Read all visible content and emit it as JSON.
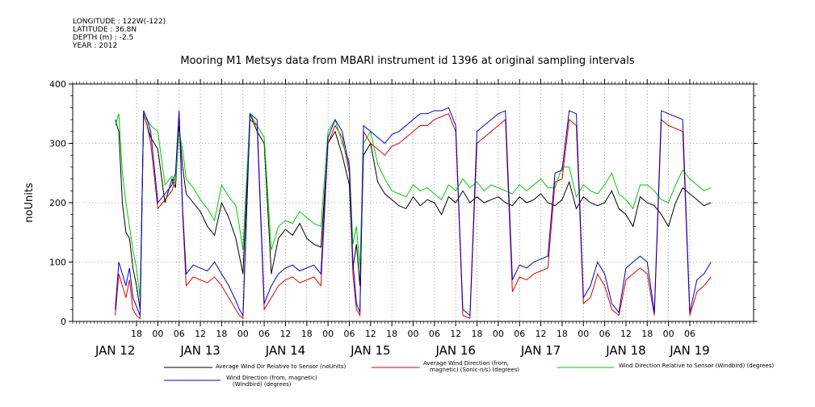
{
  "metadata": {
    "longitude": "LONGITUDE : 122W(-122)",
    "latitude": "LATITUDE : 36.8N",
    "depth": "DEPTH (m) : -2.5",
    "year": "YEAR : 2012"
  },
  "chart_data": {
    "type": "line",
    "title": "Mooring M1 Metsys data from MBARI instrument id 1396 at original sampling intervals",
    "ylabel": "noUnits",
    "xlabel": "",
    "ylim": [
      0,
      400
    ],
    "xlim_hours": [
      0,
      192
    ],
    "x_note": "hours since Jan 12 00:00 2012",
    "y_ticks": [
      0,
      100,
      200,
      300,
      400
    ],
    "x_hour_ticks": [
      {
        "h": 18,
        "label": "18"
      },
      {
        "h": 24,
        "label": "00"
      },
      {
        "h": 30,
        "label": "06"
      },
      {
        "h": 36,
        "label": "12"
      },
      {
        "h": 42,
        "label": "18"
      },
      {
        "h": 48,
        "label": "00"
      },
      {
        "h": 54,
        "label": "06"
      },
      {
        "h": 60,
        "label": "12"
      },
      {
        "h": 66,
        "label": "18"
      },
      {
        "h": 72,
        "label": "00"
      },
      {
        "h": 78,
        "label": "06"
      },
      {
        "h": 84,
        "label": "12"
      },
      {
        "h": 90,
        "label": "18"
      },
      {
        "h": 96,
        "label": "00"
      },
      {
        "h": 102,
        "label": "06"
      },
      {
        "h": 108,
        "label": "12"
      },
      {
        "h": 114,
        "label": "18"
      },
      {
        "h": 120,
        "label": "00"
      },
      {
        "h": 126,
        "label": "06"
      },
      {
        "h": 132,
        "label": "12"
      },
      {
        "h": 138,
        "label": "18"
      },
      {
        "h": 144,
        "label": "00"
      },
      {
        "h": 150,
        "label": "06"
      },
      {
        "h": 156,
        "label": "12"
      },
      {
        "h": 162,
        "label": "18"
      },
      {
        "h": 168,
        "label": "00"
      },
      {
        "h": 174,
        "label": "06"
      }
    ],
    "day_labels": [
      {
        "h": 12,
        "label": "JAN 12"
      },
      {
        "h": 36,
        "label": "JAN 13"
      },
      {
        "h": 60,
        "label": "JAN 14"
      },
      {
        "h": 84,
        "label": "JAN 15"
      },
      {
        "h": 108,
        "label": "JAN 16"
      },
      {
        "h": 132,
        "label": "JAN 17"
      },
      {
        "h": 156,
        "label": "JAN 18"
      },
      {
        "h": 174,
        "label": "JAN 19"
      }
    ],
    "series": [
      {
        "name": "Average Wind Dir Relative to Sensor (noUnits)",
        "color": "#000000",
        "x": [
          12,
          13,
          14,
          15,
          16,
          17,
          18,
          19,
          20,
          21,
          22,
          24,
          26,
          28,
          29,
          30,
          31,
          32,
          34,
          36,
          38,
          40,
          42,
          44,
          46,
          47,
          48,
          50,
          52,
          54,
          56,
          58,
          60,
          62,
          64,
          66,
          68,
          70,
          72,
          74,
          76,
          78,
          79,
          80,
          81,
          82,
          84,
          86,
          88,
          90,
          92,
          94,
          96,
          98,
          100,
          102,
          104,
          106,
          108,
          110,
          112,
          114,
          116,
          118,
          120,
          122,
          124,
          126,
          128,
          130,
          132,
          134,
          136,
          138,
          140,
          142,
          144,
          146,
          148,
          150,
          152,
          154,
          156,
          158,
          160,
          162,
          164,
          166,
          168,
          170,
          172,
          174,
          176,
          178,
          180
        ],
        "y": [
          340,
          320,
          200,
          150,
          140,
          90,
          60,
          20,
          350,
          330,
          310,
          290,
          200,
          240,
          225,
          330,
          260,
          215,
          200,
          185,
          160,
          145,
          200,
          175,
          140,
          110,
          80,
          350,
          320,
          300,
          80,
          140,
          155,
          145,
          165,
          140,
          130,
          125,
          300,
          320,
          280,
          230,
          90,
          130,
          60,
          280,
          300,
          235,
          215,
          205,
          195,
          190,
          210,
          195,
          205,
          200,
          180,
          210,
          200,
          220,
          200,
          210,
          200,
          205,
          210,
          200,
          195,
          210,
          200,
          205,
          215,
          200,
          195,
          205,
          235,
          190,
          210,
          200,
          195,
          200,
          220,
          190,
          180,
          160,
          210,
          200,
          195,
          180,
          160,
          200,
          225,
          215,
          205,
          195,
          200
        ]
      },
      {
        "name": "Average Wind Direction (from, magnetic) (Sonic-n/s) (degrees)",
        "color": "#dd0000",
        "x": [
          12,
          13,
          14,
          15,
          16,
          17,
          18,
          19,
          20,
          21,
          22,
          24,
          26,
          28,
          29,
          30,
          31,
          32,
          34,
          36,
          38,
          40,
          42,
          44,
          46,
          47,
          48,
          50,
          52,
          54,
          56,
          58,
          60,
          62,
          64,
          66,
          68,
          70,
          72,
          74,
          76,
          78,
          79,
          80,
          81,
          82,
          84,
          86,
          88,
          90,
          92,
          94,
          96,
          98,
          100,
          102,
          104,
          106,
          108,
          110,
          112,
          114,
          116,
          118,
          120,
          122,
          124,
          126,
          128,
          130,
          132,
          134,
          136,
          138,
          140,
          142,
          144,
          146,
          148,
          150,
          152,
          154,
          156,
          158,
          160,
          162,
          164,
          166,
          168,
          170,
          172,
          174,
          176,
          178,
          180
        ],
        "y": [
          10,
          80,
          60,
          40,
          70,
          20,
          10,
          5,
          350,
          330,
          300,
          190,
          205,
          220,
          240,
          350,
          180,
          60,
          75,
          70,
          65,
          75,
          60,
          40,
          20,
          10,
          5,
          340,
          330,
          20,
          40,
          60,
          70,
          75,
          65,
          70,
          75,
          60,
          300,
          330,
          310,
          250,
          80,
          20,
          10,
          320,
          300,
          290,
          280,
          295,
          300,
          310,
          320,
          330,
          330,
          340,
          345,
          350,
          320,
          10,
          5,
          300,
          310,
          320,
          330,
          340,
          50,
          75,
          70,
          80,
          85,
          90,
          235,
          240,
          340,
          330,
          30,
          40,
          80,
          60,
          20,
          10,
          70,
          80,
          90,
          80,
          10,
          340,
          330,
          325,
          320,
          10,
          50,
          60,
          75
        ]
      },
      {
        "name": "Wind Direction Relative to Sensor (Windbird) (degrees)",
        "color": "#00cc00",
        "x": [
          12,
          13,
          14,
          15,
          16,
          17,
          18,
          19,
          20,
          21,
          22,
          24,
          26,
          28,
          29,
          30,
          31,
          32,
          34,
          36,
          38,
          40,
          42,
          44,
          46,
          47,
          48,
          50,
          52,
          54,
          56,
          58,
          60,
          62,
          64,
          66,
          68,
          70,
          72,
          74,
          76,
          78,
          79,
          80,
          81,
          82,
          84,
          86,
          88,
          90,
          92,
          94,
          96,
          98,
          100,
          102,
          104,
          106,
          108,
          110,
          112,
          114,
          116,
          118,
          120,
          122,
          124,
          126,
          128,
          130,
          132,
          134,
          136,
          138,
          140,
          142,
          144,
          146,
          148,
          150,
          152,
          154,
          156,
          158,
          160,
          162,
          164,
          166,
          168,
          170,
          172,
          174,
          176,
          178,
          180
        ],
        "y": [
          330,
          350,
          250,
          200,
          160,
          120,
          90,
          40,
          345,
          340,
          330,
          320,
          230,
          245,
          235,
          320,
          290,
          240,
          225,
          205,
          190,
          170,
          230,
          210,
          195,
          160,
          120,
          350,
          330,
          310,
          120,
          160,
          170,
          165,
          185,
          175,
          165,
          160,
          320,
          340,
          300,
          270,
          130,
          160,
          90,
          300,
          320,
          265,
          240,
          220,
          215,
          210,
          230,
          220,
          225,
          215,
          205,
          230,
          220,
          240,
          225,
          235,
          220,
          230,
          225,
          220,
          215,
          230,
          220,
          230,
          240,
          225,
          225,
          260,
          260,
          210,
          230,
          220,
          215,
          230,
          250,
          215,
          205,
          190,
          230,
          230,
          220,
          205,
          200,
          230,
          255,
          240,
          230,
          220,
          225
        ]
      },
      {
        "name": "Wind Direction (from, magnetic) (Windbird) (degrees)",
        "color": "#0000cc",
        "x": [
          12,
          13,
          14,
          15,
          16,
          17,
          18,
          19,
          20,
          21,
          22,
          24,
          26,
          28,
          29,
          30,
          31,
          32,
          34,
          36,
          38,
          40,
          42,
          44,
          46,
          47,
          48,
          50,
          52,
          54,
          56,
          58,
          60,
          62,
          64,
          66,
          68,
          70,
          72,
          74,
          76,
          78,
          79,
          80,
          81,
          82,
          84,
          86,
          88,
          90,
          92,
          94,
          96,
          98,
          100,
          102,
          104,
          106,
          108,
          110,
          112,
          114,
          116,
          118,
          120,
          122,
          124,
          126,
          128,
          130,
          132,
          134,
          136,
          138,
          140,
          142,
          144,
          146,
          148,
          150,
          152,
          154,
          156,
          158,
          160,
          162,
          164,
          166,
          168,
          170,
          172,
          174,
          176,
          178,
          180
        ],
        "y": [
          20,
          100,
          80,
          60,
          90,
          40,
          25,
          10,
          355,
          340,
          320,
          200,
          215,
          230,
          250,
          355,
          190,
          80,
          95,
          90,
          85,
          100,
          80,
          60,
          35,
          20,
          10,
          350,
          340,
          30,
          60,
          80,
          90,
          95,
          85,
          90,
          95,
          80,
          310,
          340,
          320,
          260,
          100,
          30,
          15,
          330,
          320,
          310,
          300,
          315,
          320,
          330,
          340,
          350,
          350,
          355,
          355,
          360,
          330,
          20,
          10,
          320,
          330,
          340,
          350,
          355,
          70,
          95,
          90,
          100,
          105,
          110,
          250,
          255,
          355,
          350,
          40,
          60,
          100,
          80,
          30,
          15,
          90,
          100,
          110,
          100,
          15,
          355,
          350,
          345,
          340,
          15,
          70,
          80,
          100
        ]
      }
    ]
  }
}
